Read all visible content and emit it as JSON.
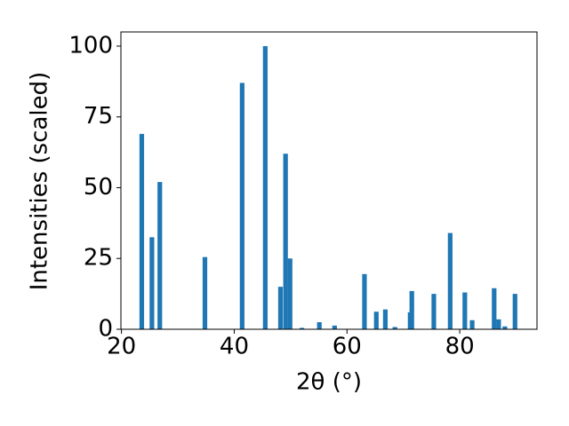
{
  "chart_data": {
    "type": "bar",
    "xlabel": "2θ (°)",
    "ylabel": "Intensities (scaled)",
    "x": [
      23.6,
      25.4,
      26.8,
      34.8,
      41.4,
      45.5,
      48.2,
      49.1,
      49.9,
      52.0,
      55.1,
      57.8,
      63.1,
      65.2,
      66.8,
      68.5,
      71.2,
      71.5,
      75.4,
      78.3,
      80.9,
      82.2,
      86.1,
      86.9,
      88.0,
      89.8
    ],
    "values": [
      69,
      32.5,
      52,
      25.5,
      87,
      100,
      15,
      62,
      25,
      0.5,
      2.5,
      1.3,
      19.5,
      6.2,
      7,
      0.8,
      6,
      13.5,
      12.5,
      34,
      13,
      3.2,
      14.5,
      3.5,
      1,
      12.5
    ],
    "color": "#1f77b4",
    "xlim": [
      19.9,
      93.7
    ],
    "xticks": [
      20,
      40,
      60,
      80
    ],
    "ylim": [
      0,
      105
    ],
    "yticks": [
      0,
      25,
      50,
      75,
      100
    ]
  }
}
